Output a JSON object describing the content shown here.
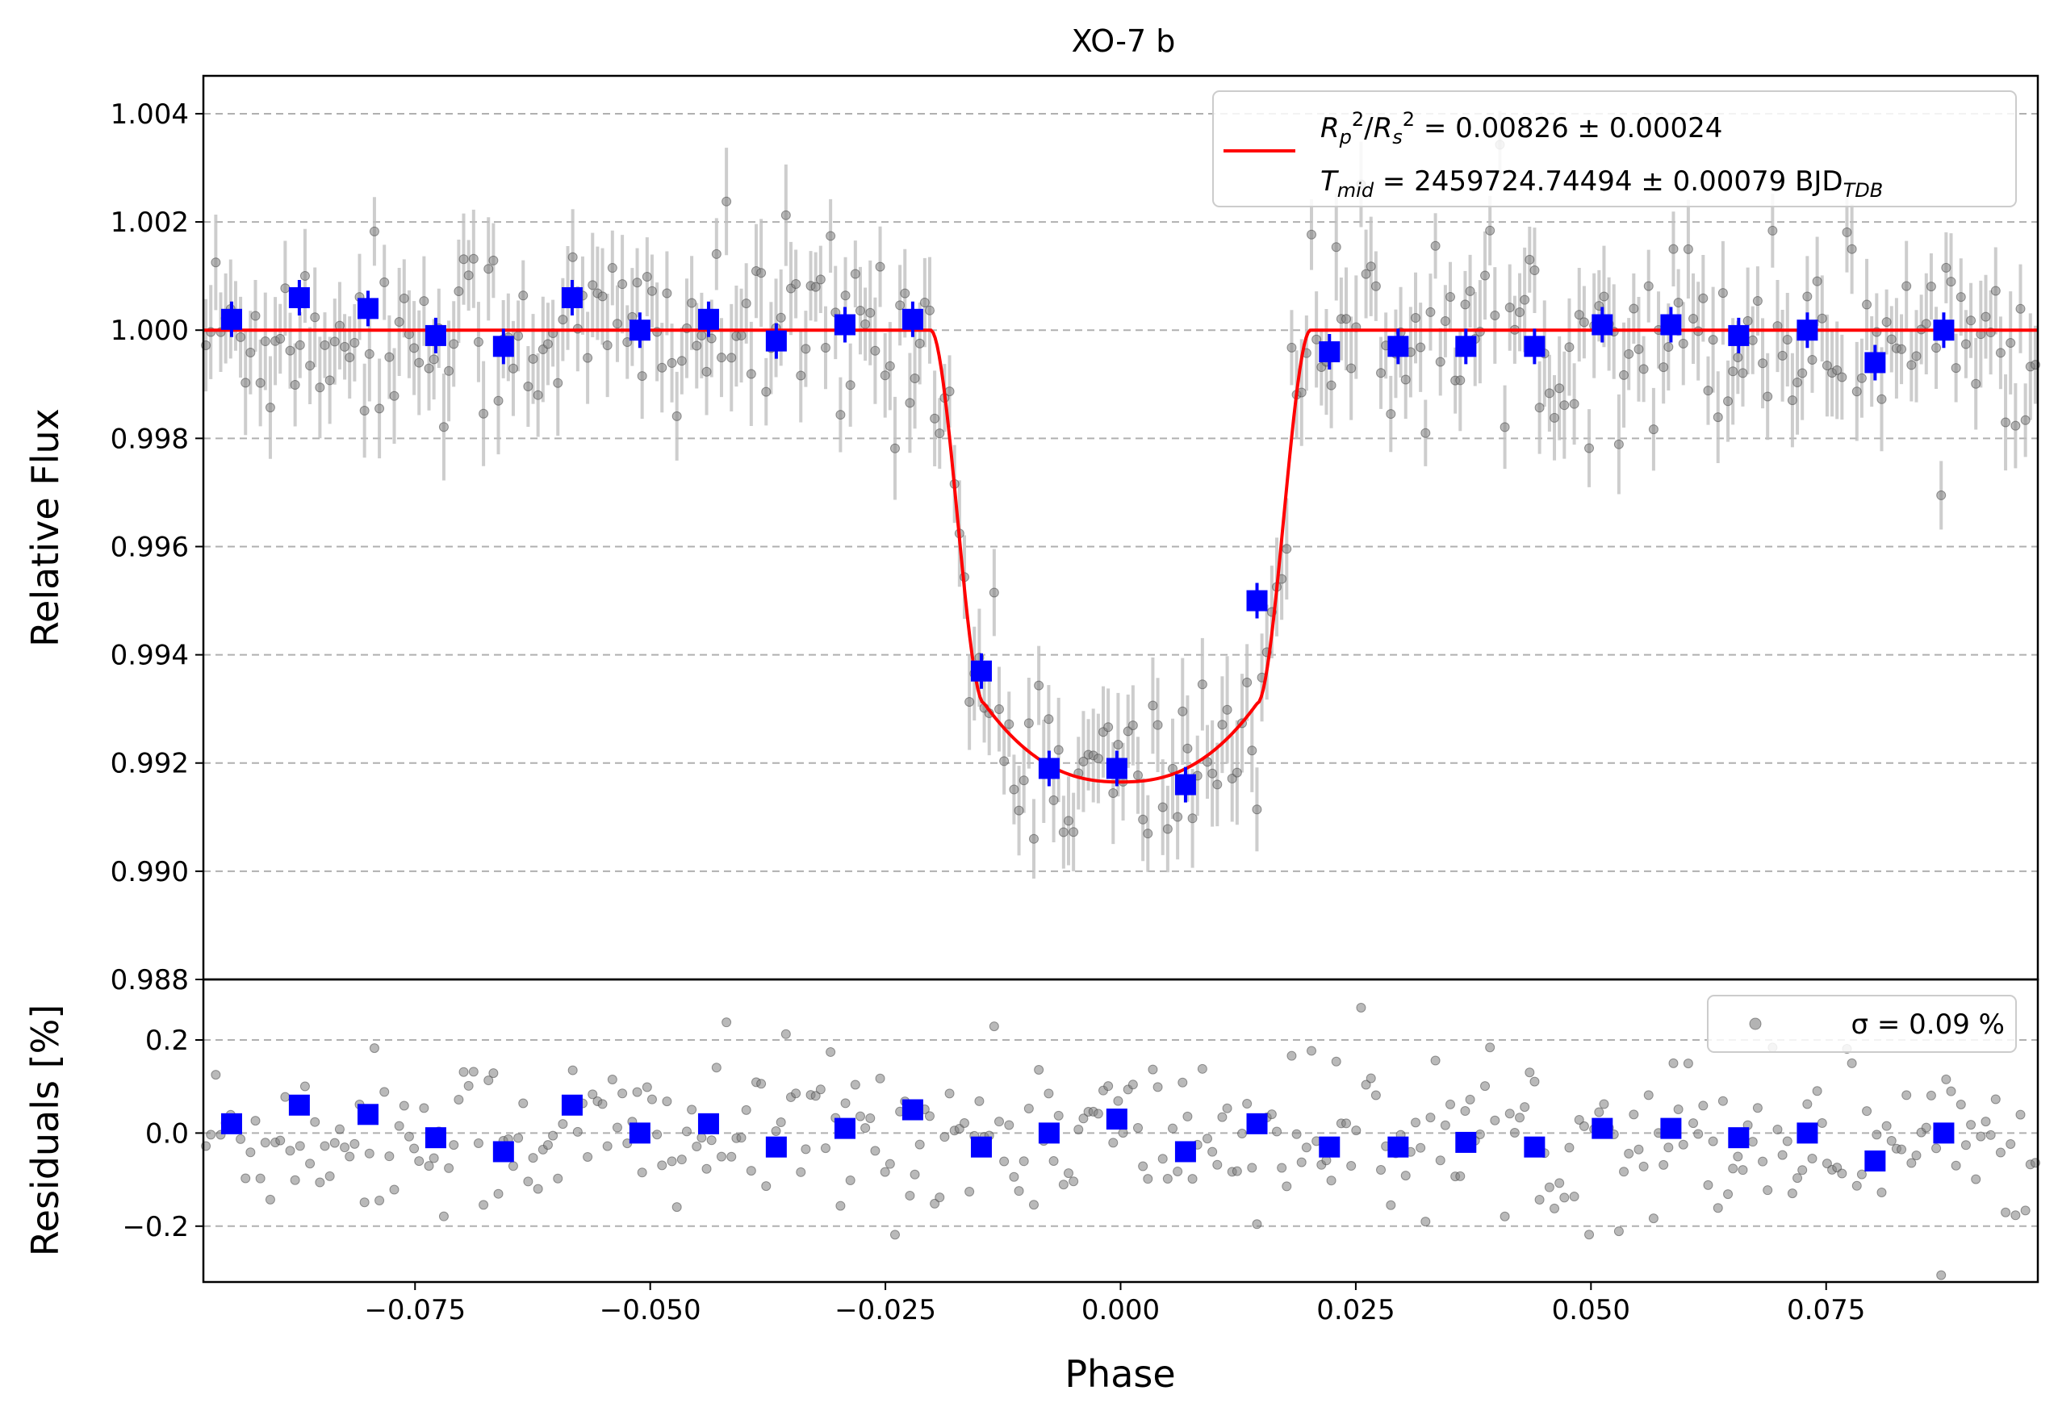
{
  "chart_data": [
    {
      "type": "scatter",
      "panel": "main",
      "title": "XO-7 b",
      "xlabel": "",
      "ylabel": "Relative Flux",
      "xlim": [
        -0.0975,
        0.0975
      ],
      "ylim": [
        0.988,
        1.0047
      ],
      "y_ticks": [
        "1.004",
        "1.002",
        "1.000",
        "0.998",
        "0.996",
        "0.994",
        "0.992",
        "0.990",
        "0.988"
      ],
      "grid": "horizontal dashed",
      "legend_position": "top-right",
      "legend": {
        "line1": "R_p^2/R_s^2 = 0.00826 ± 0.00024",
        "line2": "T_mid = 2459724.74494 ± 0.00079 BJD_TDB"
      },
      "model": {
        "depth": 0.00826,
        "t_contact_outer": 0.0202,
        "t_contact_inner": 0.0145,
        "minimum": 0.99165,
        "color": "#ff0000"
      },
      "binned": {
        "color": "#0000ff",
        "x": [
          -0.0945,
          -0.0873,
          -0.08,
          -0.0728,
          -0.0656,
          -0.0583,
          -0.0511,
          -0.0438,
          -0.0366,
          -0.0293,
          -0.0221,
          -0.0148,
          -0.0076,
          -0.0004,
          0.0069,
          0.0145,
          0.0222,
          0.0295,
          0.0367,
          0.044,
          0.0512,
          0.0585,
          0.0657,
          0.073,
          0.0802,
          0.0875
        ],
        "y": [
          1.0002,
          1.0006,
          1.0004,
          0.9999,
          0.9997,
          1.0006,
          1.0,
          1.0002,
          0.9998,
          1.0001,
          1.0002,
          0.9937,
          0.9919,
          0.9919,
          0.9916,
          0.995,
          0.9996,
          0.9997,
          0.9997,
          0.9997,
          1.0001,
          1.0001,
          0.9999,
          1.0,
          0.9994,
          1.0
        ]
      },
      "raw": {
        "color": "#808080",
        "n_points": 370,
        "scatter_sigma": 0.0009
      }
    },
    {
      "type": "scatter",
      "panel": "residuals",
      "xlabel": "Phase",
      "ylabel": "Residuals [%]",
      "xlim": [
        -0.0975,
        0.0975
      ],
      "ylim": [
        -0.32,
        0.33
      ],
      "x_ticks": [
        "−0.075",
        "−0.050",
        "−0.025",
        "0.000",
        "0.025",
        "0.050",
        "0.075"
      ],
      "x_tick_values": [
        -0.075,
        -0.05,
        -0.025,
        0.0,
        0.025,
        0.05,
        0.075
      ],
      "y_ticks": [
        "0.2",
        "0.0",
        "−0.2"
      ],
      "y_tick_values": [
        0.2,
        0.0,
        -0.2
      ],
      "grid": "horizontal dashed",
      "legend_position": "top-right",
      "legend": {
        "label": "σ = 0.09 %"
      },
      "binned": {
        "y": [
          0.02,
          0.06,
          0.04,
          -0.01,
          -0.04,
          0.06,
          0.0,
          0.02,
          -0.03,
          0.01,
          0.05,
          -0.03,
          0.0,
          0.03,
          -0.04,
          0.02,
          -0.03,
          -0.03,
          -0.02,
          -0.03,
          0.01,
          0.01,
          -0.01,
          0.0,
          -0.06,
          0.0
        ]
      }
    }
  ]
}
